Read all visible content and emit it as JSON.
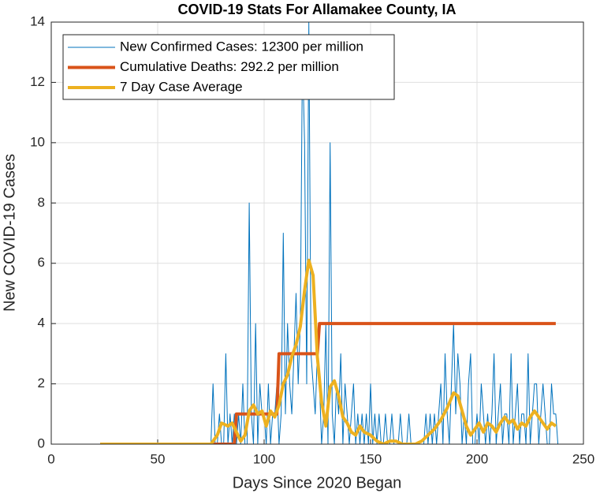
{
  "chart_data": {
    "type": "line",
    "title": "COVID-19 Stats For Allamakee County, IA",
    "xlabel": "Days Since 2020 Began",
    "ylabel": "New COVID-19 Cases",
    "xlim": [
      0,
      250
    ],
    "xticks": [
      0,
      50,
      100,
      150,
      200,
      250
    ],
    "ylim": [
      0,
      14
    ],
    "yticks": [
      0,
      2,
      4,
      6,
      8,
      10,
      12,
      14
    ],
    "grid": true,
    "legend": "top-left",
    "series": [
      {
        "name": "New Confirmed Cases: 12300 per million",
        "color": "#0072BD",
        "width": 1,
        "x": [
          23,
          74,
          75,
          76,
          77,
          78,
          79,
          80,
          81,
          82,
          83,
          84,
          85,
          86,
          87,
          88,
          89,
          90,
          91,
          92,
          93,
          94,
          95,
          96,
          97,
          98,
          99,
          100,
          101,
          102,
          103,
          104,
          105,
          106,
          107,
          108,
          109,
          110,
          111,
          112,
          113,
          114,
          115,
          116,
          117,
          118,
          119,
          120,
          121,
          122,
          123,
          124,
          125,
          126,
          127,
          128,
          129,
          130,
          131,
          132,
          133,
          134,
          135,
          136,
          137,
          138,
          139,
          140,
          141,
          142,
          143,
          144,
          145,
          146,
          147,
          148,
          149,
          150,
          151,
          152,
          153,
          154,
          155,
          156,
          157,
          158,
          159,
          160,
          161,
          162,
          163,
          164,
          165,
          166,
          167,
          168,
          169,
          170,
          171,
          172,
          173,
          174,
          175,
          176,
          177,
          178,
          179,
          180,
          181,
          182,
          183,
          184,
          185,
          186,
          187,
          188,
          189,
          190,
          191,
          192,
          193,
          194,
          195,
          196,
          197,
          198,
          199,
          200,
          201,
          202,
          203,
          204,
          205,
          206,
          207,
          208,
          209,
          210,
          211,
          212,
          213,
          214,
          215,
          216,
          217,
          218,
          219,
          220,
          221,
          222,
          223,
          224,
          225,
          226,
          227,
          228,
          229,
          230,
          231,
          232,
          233,
          234,
          235,
          236,
          237,
          238
        ],
        "values": [
          0,
          0,
          0,
          2,
          0,
          0,
          1,
          0,
          0,
          3,
          0,
          1,
          0,
          1,
          0,
          1,
          0,
          2,
          0,
          0,
          8,
          1,
          0,
          4,
          0,
          2,
          1,
          1,
          0,
          2,
          0,
          1,
          1,
          2,
          0,
          1,
          7,
          1,
          4,
          2,
          1,
          3,
          5,
          2,
          4,
          13,
          10,
          2,
          14,
          3,
          2,
          1,
          3,
          2,
          0,
          1,
          4,
          0,
          10,
          1,
          0,
          2,
          1,
          3,
          0,
          2,
          1,
          0,
          1,
          2,
          0,
          1,
          0,
          1,
          0,
          1,
          0,
          2,
          0,
          1,
          0,
          1,
          0,
          0,
          1,
          0,
          0,
          1,
          0,
          0,
          0,
          1,
          0,
          0,
          0,
          1,
          0,
          0,
          0,
          0,
          0,
          0,
          0,
          1,
          0,
          1,
          0,
          1,
          0,
          1,
          2,
          0,
          3,
          1,
          0,
          2,
          4,
          1,
          3,
          2,
          0,
          1,
          0,
          2,
          3,
          0,
          0,
          1,
          0,
          2,
          1,
          0,
          1,
          0,
          1,
          3,
          0,
          1,
          2,
          0,
          1,
          1,
          0,
          3,
          0,
          1,
          2,
          0,
          1,
          1,
          0,
          3,
          0,
          1,
          2,
          2,
          0,
          1,
          2,
          1,
          0,
          0,
          2,
          1,
          1,
          0
        ]
      },
      {
        "name": "Cumulative Deaths: 292.2 per million",
        "color": "#D95319",
        "width": 4,
        "x": [
          23,
          86,
          87,
          106,
          107,
          125,
          126,
          237
        ],
        "values": [
          0,
          0,
          1,
          1,
          3,
          3,
          4,
          4
        ]
      },
      {
        "name": "7 Day Case Average",
        "color": "#EDB120",
        "width": 4,
        "x": [
          23,
          75,
          78,
          80,
          83,
          85,
          87,
          89,
          91,
          93,
          95,
          97,
          99,
          101,
          103,
          105,
          107,
          109,
          111,
          113,
          115,
          117,
          119,
          121,
          123,
          125,
          127,
          129,
          131,
          133,
          135,
          137,
          139,
          141,
          143,
          145,
          147,
          150,
          153,
          156,
          159,
          162,
          165,
          168,
          171,
          174,
          177,
          180,
          183,
          186,
          189,
          191,
          193,
          195,
          197,
          199,
          201,
          203,
          205,
          207,
          209,
          211,
          213,
          215,
          217,
          219,
          221,
          223,
          225,
          227,
          229,
          231,
          233,
          235,
          237
        ],
        "values": [
          0,
          0,
          0.3,
          0.7,
          0.6,
          0.7,
          0.4,
          0.1,
          0.3,
          1.1,
          1.3,
          1.0,
          1.1,
          0.6,
          1.1,
          0.9,
          1.3,
          2.0,
          2.3,
          2.9,
          3.3,
          3.9,
          5.1,
          6.1,
          5.6,
          2.9,
          1.4,
          0.6,
          1.9,
          2.1,
          1.6,
          0.9,
          0.7,
          0.4,
          0.3,
          0.6,
          0.4,
          0.3,
          0.1,
          0,
          0.1,
          0.1,
          0,
          0,
          0,
          0.1,
          0.3,
          0.5,
          0.8,
          1.2,
          1.7,
          1.6,
          1.1,
          0.6,
          0.3,
          0.5,
          0.7,
          0.4,
          0.7,
          0.6,
          0.4,
          0.7,
          0.9,
          0.7,
          0.8,
          0.5,
          0.7,
          0.6,
          0.9,
          1.1,
          0.9,
          0.7,
          0.5,
          0.7,
          0.6
        ]
      }
    ]
  }
}
